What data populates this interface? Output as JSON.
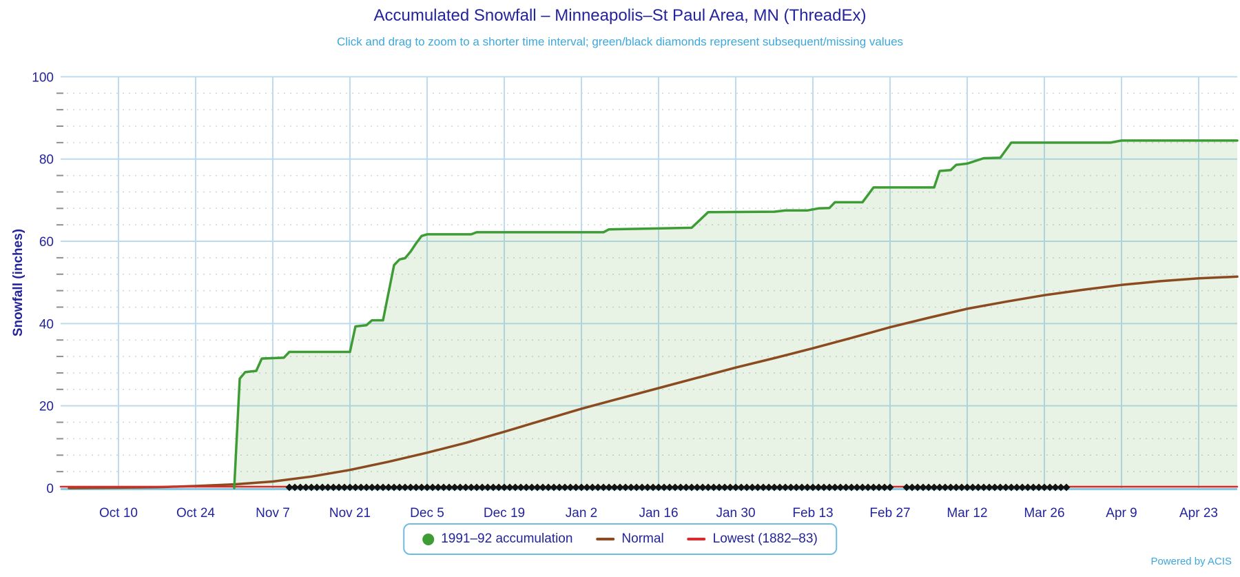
{
  "header": {
    "title": "Accumulated Snowfall – Minneapolis–St Paul Area, MN (ThreadEx)",
    "subtitle": "Click and drag to zoom to a shorter time interval; green/black diamonds represent subsequent/missing values"
  },
  "footer": {
    "powered_by": "Powered by ACIS"
  },
  "colors": {
    "title_navy": "#23239b",
    "subtitle_blue": "#3ca7db",
    "grid_major": "#bcdcee",
    "grid_minor_dots": "#cdd5dd",
    "minor_tick": "#8f8f8f",
    "axis_line": "#85cae6",
    "accumulation_green": "#3e9c35",
    "accumulation_fill": "rgba(62,156,53,0.12)",
    "normal_brown": "#8b4a1f",
    "lowest_red": "#d92b2b",
    "diamond_black": "#121212",
    "legend_border": "#70bae4"
  },
  "legend": {
    "items": [
      {
        "label": "1991–92 accumulation",
        "marker": "circle",
        "color": "#3e9c35"
      },
      {
        "label": "Normal",
        "marker": "line",
        "color": "#8b4a1f"
      },
      {
        "label": "Lowest (1882–83)",
        "marker": "line",
        "color": "#d92b2b"
      }
    ]
  },
  "chart_data": {
    "type": "line",
    "title": "Accumulated Snowfall – Minneapolis–St Paul Area, MN (ThreadEx)",
    "subtitle": "Click and drag to zoom to a shorter time interval; green/black diamonds represent subsequent/missing values",
    "xlabel": "",
    "ylabel": "Snowfall (inches)",
    "ylim": [
      0,
      100
    ],
    "y_major_ticks": [
      0,
      20,
      40,
      60,
      80,
      100
    ],
    "y_minor_step": 4,
    "x_day0_date": "Oct 1",
    "xlim_days": [
      -1.5,
      212
    ],
    "grid": {
      "x_major": true,
      "y_major": true,
      "y_minor_dotted": true
    },
    "legend_position": "bottom-center",
    "x_ticks": [
      {
        "label": "Oct 10",
        "day": 9
      },
      {
        "label": "Oct 24",
        "day": 23
      },
      {
        "label": "Nov 7",
        "day": 37
      },
      {
        "label": "Nov 21",
        "day": 51
      },
      {
        "label": "Dec 5",
        "day": 65
      },
      {
        "label": "Dec 19",
        "day": 79
      },
      {
        "label": "Jan 2",
        "day": 93
      },
      {
        "label": "Jan 16",
        "day": 107
      },
      {
        "label": "Jan 30",
        "day": 121
      },
      {
        "label": "Feb 13",
        "day": 135
      },
      {
        "label": "Feb 27",
        "day": 149
      },
      {
        "label": "Mar 12",
        "day": 163
      },
      {
        "label": "Mar 26",
        "day": 177
      },
      {
        "label": "Apr 9",
        "day": 191
      },
      {
        "label": "Apr 23",
        "day": 205
      }
    ],
    "series": [
      {
        "name": "1991–92 accumulation",
        "color": "#3e9c35",
        "marker": "circle",
        "area_fill": "rgba(62,156,53,0.12)",
        "points": [
          [
            30,
            0
          ],
          [
            31,
            26.6
          ],
          [
            32,
            28.2
          ],
          [
            34,
            28.5
          ],
          [
            35,
            31.5
          ],
          [
            39,
            31.7
          ],
          [
            40,
            33.1
          ],
          [
            51,
            33.1
          ],
          [
            52,
            39.3
          ],
          [
            54,
            39.6
          ],
          [
            55,
            40.8
          ],
          [
            57,
            40.8
          ],
          [
            59,
            54.2
          ],
          [
            60,
            55.6
          ],
          [
            61,
            55.9
          ],
          [
            62,
            57.5
          ],
          [
            63,
            59.5
          ],
          [
            64,
            61.3
          ],
          [
            65,
            61.7
          ],
          [
            73,
            61.7
          ],
          [
            74,
            62.2
          ],
          [
            97,
            62.2
          ],
          [
            98,
            62.9
          ],
          [
            106,
            63.1
          ],
          [
            113,
            63.3
          ],
          [
            116,
            67.1
          ],
          [
            128,
            67.2
          ],
          [
            130,
            67.5
          ],
          [
            134,
            67.5
          ],
          [
            136,
            68.0
          ],
          [
            138,
            68.1
          ],
          [
            139,
            69.5
          ],
          [
            144,
            69.5
          ],
          [
            146,
            73.1
          ],
          [
            157,
            73.1
          ],
          [
            158,
            77.1
          ],
          [
            160,
            77.3
          ],
          [
            161,
            78.6
          ],
          [
            163,
            78.9
          ],
          [
            166,
            80.2
          ],
          [
            169,
            80.3
          ],
          [
            171,
            84.0
          ],
          [
            189,
            84.0
          ],
          [
            191,
            84.5
          ],
          [
            212,
            84.5
          ]
        ]
      },
      {
        "name": "Normal",
        "color": "#8b4a1f",
        "marker": "line",
        "points": [
          [
            0,
            0
          ],
          [
            9,
            0.1
          ],
          [
            16,
            0.2
          ],
          [
            23,
            0.5
          ],
          [
            30,
            0.9
          ],
          [
            37,
            1.6
          ],
          [
            44,
            2.8
          ],
          [
            51,
            4.4
          ],
          [
            58,
            6.4
          ],
          [
            65,
            8.6
          ],
          [
            72,
            11.0
          ],
          [
            79,
            13.7
          ],
          [
            86,
            16.5
          ],
          [
            93,
            19.3
          ],
          [
            100,
            21.8
          ],
          [
            107,
            24.3
          ],
          [
            114,
            26.8
          ],
          [
            121,
            29.3
          ],
          [
            128,
            31.6
          ],
          [
            135,
            34.0
          ],
          [
            142,
            36.5
          ],
          [
            149,
            39.1
          ],
          [
            156,
            41.4
          ],
          [
            163,
            43.6
          ],
          [
            170,
            45.3
          ],
          [
            177,
            46.9
          ],
          [
            184,
            48.2
          ],
          [
            191,
            49.4
          ],
          [
            198,
            50.3
          ],
          [
            205,
            51.0
          ],
          [
            212,
            51.4
          ]
        ]
      },
      {
        "name": "Lowest (1882–83)",
        "color": "#d92b2b",
        "marker": "line",
        "points": [
          [
            -1.5,
            0
          ],
          [
            212,
            0
          ]
        ]
      }
    ],
    "missing_value_markers": {
      "shape": "diamond",
      "color": "#121212",
      "y_value": 0,
      "start_day": 40,
      "end_day": 181,
      "gap_days": [
        150,
        151
      ]
    }
  }
}
